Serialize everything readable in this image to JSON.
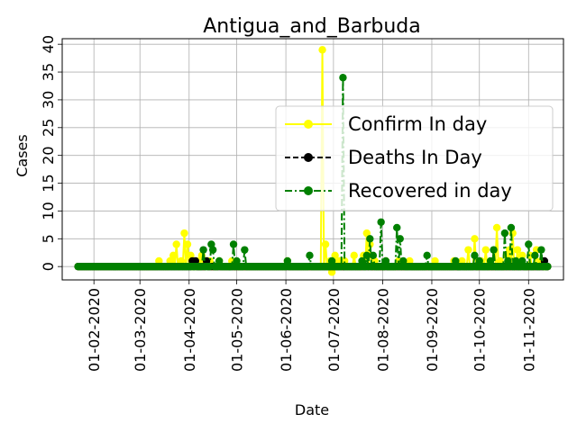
{
  "chart_data": {
    "type": "line",
    "title": "Antigua_and_Barbuda",
    "xlabel": "Date",
    "ylabel": "Cases",
    "x_start": "2020-01-22",
    "x_end": "2020-11-13",
    "xlim": [
      "2020-01-12",
      "2020-11-23"
    ],
    "ylim": [
      -2.4,
      41
    ],
    "x_ticks": [
      "01-02-2020",
      "01-03-2020",
      "01-04-2020",
      "01-05-2020",
      "01-06-2020",
      "01-07-2020",
      "01-08-2020",
      "01-09-2020",
      "01-10-2020",
      "01-11-2020"
    ],
    "y_ticks": [
      0,
      5,
      10,
      15,
      20,
      25,
      30,
      35,
      40
    ],
    "grid": true,
    "legend_position": "right",
    "series": [
      {
        "name": "Confirm In day",
        "color": "#ffff00",
        "line_style": "solid",
        "marker_color": "#ffff00",
        "points": [
          [
            "2020-03-13",
            1
          ],
          [
            "2020-03-20",
            1
          ],
          [
            "2020-03-22",
            2
          ],
          [
            "2020-03-24",
            4
          ],
          [
            "2020-03-27",
            1
          ],
          [
            "2020-03-29",
            6
          ],
          [
            "2020-03-31",
            4
          ],
          [
            "2020-04-02",
            2
          ],
          [
            "2020-04-04",
            1
          ],
          [
            "2020-04-06",
            1
          ],
          [
            "2020-04-09",
            2
          ],
          [
            "2020-04-12",
            1
          ],
          [
            "2020-04-14",
            1
          ],
          [
            "2020-04-20",
            1
          ],
          [
            "2020-04-28",
            1
          ],
          [
            "2020-06-02",
            1
          ],
          [
            "2020-06-24",
            39
          ],
          [
            "2020-06-26",
            4
          ],
          [
            "2020-06-29",
            1
          ],
          [
            "2020-06-30",
            -1
          ],
          [
            "2020-07-02",
            2
          ],
          [
            "2020-07-05",
            1
          ],
          [
            "2020-07-08",
            1
          ],
          [
            "2020-07-14",
            2
          ],
          [
            "2020-07-20",
            2
          ],
          [
            "2020-07-22",
            6
          ],
          [
            "2020-07-24",
            4
          ],
          [
            "2020-07-27",
            1
          ],
          [
            "2020-08-03",
            1
          ],
          [
            "2020-08-11",
            1
          ],
          [
            "2020-08-18",
            1
          ],
          [
            "2020-09-03",
            1
          ],
          [
            "2020-09-15",
            1
          ],
          [
            "2020-09-20",
            1
          ],
          [
            "2020-09-24",
            3
          ],
          [
            "2020-09-28",
            5
          ],
          [
            "2020-10-02",
            1
          ],
          [
            "2020-10-05",
            3
          ],
          [
            "2020-10-12",
            7
          ],
          [
            "2020-10-14",
            1
          ],
          [
            "2020-10-18",
            2
          ],
          [
            "2020-10-20",
            3
          ],
          [
            "2020-10-22",
            6
          ],
          [
            "2020-10-25",
            3
          ],
          [
            "2020-10-28",
            2
          ],
          [
            "2020-11-02",
            2
          ],
          [
            "2020-11-06",
            3
          ],
          [
            "2020-11-09",
            1
          ]
        ]
      },
      {
        "name": "Deaths In Day",
        "color": "#000000",
        "line_style": "dashed",
        "marker_color": "#000000",
        "points": [
          [
            "2020-04-03",
            1
          ],
          [
            "2020-04-05",
            1
          ],
          [
            "2020-04-12",
            1
          ],
          [
            "2020-11-11",
            1
          ]
        ]
      },
      {
        "name": "Recovered in day",
        "color": "#008000",
        "line_style": "dashdot",
        "marker_color": "#008000",
        "points": [
          [
            "2020-04-10",
            3
          ],
          [
            "2020-04-15",
            4
          ],
          [
            "2020-04-16",
            3
          ],
          [
            "2020-04-20",
            1
          ],
          [
            "2020-04-29",
            4
          ],
          [
            "2020-05-01",
            1
          ],
          [
            "2020-05-06",
            3
          ],
          [
            "2020-06-02",
            1
          ],
          [
            "2020-06-16",
            2
          ],
          [
            "2020-06-30",
            1
          ],
          [
            "2020-07-07",
            34
          ],
          [
            "2020-07-19",
            1
          ],
          [
            "2020-07-22",
            2
          ],
          [
            "2020-07-24",
            5
          ],
          [
            "2020-07-26",
            2
          ],
          [
            "2020-07-31",
            8
          ],
          [
            "2020-08-03",
            1
          ],
          [
            "2020-08-10",
            7
          ],
          [
            "2020-08-12",
            5
          ],
          [
            "2020-08-14",
            1
          ],
          [
            "2020-08-29",
            2
          ],
          [
            "2020-09-16",
            1
          ],
          [
            "2020-09-28",
            2
          ],
          [
            "2020-10-01",
            1
          ],
          [
            "2020-10-08",
            1
          ],
          [
            "2020-10-10",
            3
          ],
          [
            "2020-10-17",
            6
          ],
          [
            "2020-10-19",
            1
          ],
          [
            "2020-10-21",
            7
          ],
          [
            "2020-10-24",
            1
          ],
          [
            "2020-10-28",
            1
          ],
          [
            "2020-11-01",
            4
          ],
          [
            "2020-11-05",
            2
          ],
          [
            "2020-11-09",
            3
          ]
        ]
      }
    ]
  }
}
